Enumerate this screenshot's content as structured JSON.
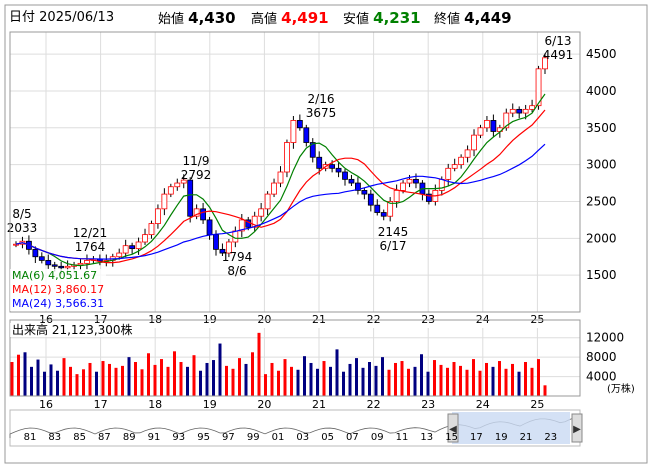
{
  "header": {
    "date_label": "日付",
    "date": "2025/06/13",
    "open_label": "始値",
    "open": "4,430",
    "high_label": "高値",
    "high": "4,491",
    "low_label": "安値",
    "low": "4,231",
    "close_label": "終値",
    "close": "4,449"
  },
  "colors": {
    "up": "#ff0000",
    "down": "#0000ff",
    "ma6": "#008000",
    "ma12": "#ff0000",
    "ma24": "#0000ff",
    "grid": "#dddddd",
    "border": "#999999"
  },
  "chart_data": {
    "type": "candlestick",
    "x_axis_labels": [
      "16",
      "17",
      "18",
      "19",
      "20",
      "21",
      "22",
      "23",
      "24",
      "25"
    ],
    "y_axis_ticks": [
      1500,
      2000,
      2500,
      3000,
      3500,
      4000,
      4500
    ],
    "ylim": [
      1000,
      4800
    ],
    "price_series": [
      1920,
      1960,
      1850,
      1750,
      1700,
      1640,
      1620,
      1600,
      1620,
      1640,
      1660,
      1700,
      1720,
      1690,
      1700,
      1750,
      1800,
      1900,
      1860,
      1950,
      2050,
      2200,
      2400,
      2600,
      2700,
      2750,
      2790,
      2300,
      2400,
      2250,
      2050,
      1850,
      1800,
      1950,
      2100,
      2250,
      2150,
      2300,
      2400,
      2600,
      2750,
      2900,
      3300,
      3600,
      3500,
      3300,
      3100,
      2950,
      3000,
      2950,
      2900,
      2800,
      2750,
      2650,
      2600,
      2450,
      2350,
      2300,
      2500,
      2650,
      2750,
      2800,
      2750,
      2600,
      2500,
      2650,
      2800,
      2950,
      3000,
      3100,
      3200,
      3400,
      3500,
      3600,
      3450,
      3500,
      3700,
      3750,
      3700,
      3750,
      3800,
      4300,
      4450
    ],
    "annotations": [
      {
        "date": "8/5",
        "value": "2033"
      },
      {
        "date": "12/21",
        "value": "1764"
      },
      {
        "date": "11/9",
        "value": "2792"
      },
      {
        "date": "8/6",
        "value": "1794"
      },
      {
        "date": "2/16",
        "value": "3675"
      },
      {
        "date": "6/17",
        "value": "2145"
      },
      {
        "date": "6/13",
        "value": "4491"
      }
    ],
    "moving_averages": [
      {
        "name": "MA(6)",
        "value": "4,051.67"
      },
      {
        "name": "MA(12)",
        "value": "3,860.17"
      },
      {
        "name": "MA(24)",
        "value": "3,566.31"
      }
    ],
    "volume": {
      "label": "出来高",
      "value": "21,123,300株",
      "unit": "(万株)",
      "y_ticks": [
        4000,
        8000,
        12000
      ],
      "ylim": [
        0,
        14000
      ],
      "series": [
        7000,
        8500,
        9000,
        6000,
        7500,
        5000,
        6500,
        5200,
        7800,
        6000,
        4500,
        5500,
        6800,
        5000,
        7200,
        6600,
        5800,
        6200,
        8000,
        7000,
        5500,
        8800,
        6400,
        7600,
        6000,
        9200,
        7000,
        6000,
        8400,
        5200,
        6800,
        7400,
        10800,
        6200,
        5600,
        7800,
        6600,
        9000,
        13000,
        4500,
        6800,
        5200,
        7600,
        6000,
        5400,
        8200,
        6800,
        5600,
        7200,
        6000,
        9600,
        5000,
        6600,
        7800,
        5800,
        7000,
        6200,
        8000,
        5400,
        6800,
        7200,
        5600,
        6000,
        8600,
        5000,
        7400,
        6400,
        5800,
        7000,
        6200,
        5400,
        7600,
        5200,
        6800,
        6000,
        7200,
        5600,
        6600,
        5000,
        7000,
        5800,
        7600,
        2200
      ]
    },
    "navigator": {
      "labels": [
        "81",
        "83",
        "85",
        "87",
        "89",
        "91",
        "93",
        "95",
        "97",
        "99",
        "01",
        "03",
        "05",
        "07",
        "09",
        "11",
        "13",
        "15",
        "17",
        "19",
        "21",
        "23"
      ]
    }
  }
}
